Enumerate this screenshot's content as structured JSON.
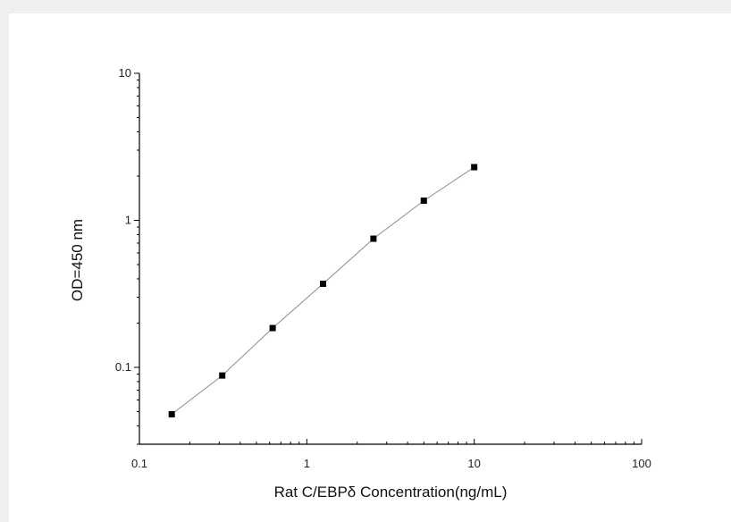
{
  "chart_data": {
    "type": "scatter",
    "x_scale": "log",
    "y_scale": "log",
    "xlim": [
      0.1,
      100
    ],
    "ylim": [
      0.03,
      10
    ],
    "xlabel": "Rat C/EBPδ  Concentration(ng/mL)",
    "ylabel": "OD=450 nm",
    "x_ticks": [
      {
        "value": 0.1,
        "label": "0.1"
      },
      {
        "value": 1,
        "label": "1"
      },
      {
        "value": 10,
        "label": "10"
      },
      {
        "value": 100,
        "label": "100"
      }
    ],
    "y_ticks": [
      {
        "value": 0.1,
        "label": "0.1"
      },
      {
        "value": 1,
        "label": "1"
      },
      {
        "value": 10,
        "label": "10"
      }
    ],
    "grid": false,
    "legend": "none",
    "series": [
      {
        "x": [
          0.156,
          0.3125,
          0.625,
          1.25,
          2.5,
          5,
          10
        ],
        "y": [
          0.048,
          0.088,
          0.185,
          0.37,
          0.75,
          1.36,
          2.3
        ]
      }
    ],
    "colors": {
      "marker": "#000000",
      "line": "#8c8c8c",
      "axis": "#000000"
    }
  }
}
